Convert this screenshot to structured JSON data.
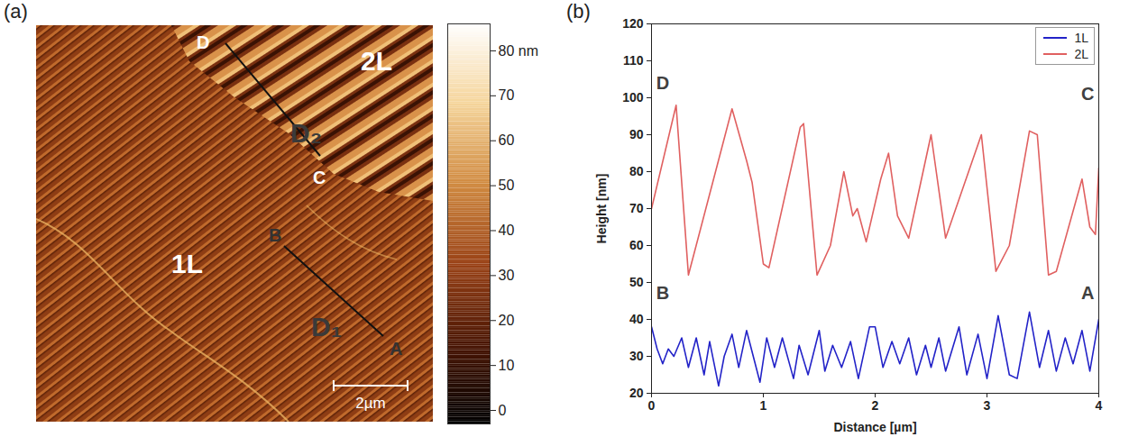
{
  "image_panel": {
    "panel_label": "(a)",
    "region_labels": [
      "1L",
      "2L"
    ],
    "profiles": [
      {
        "name": "D₁",
        "start": "B",
        "end": "A"
      },
      {
        "name": "D₂",
        "start": "D",
        "end": "C"
      }
    ],
    "scale_bar": "2µm",
    "colorbar": {
      "lim": [
        -3,
        86
      ],
      "ticks": [
        {
          "value": 80,
          "label": "80 nm"
        },
        70,
        60,
        50,
        40,
        30,
        20,
        10,
        0
      ]
    }
  },
  "chart_data": {
    "type": "line",
    "panel_label": "(b)",
    "x_label": "Distance [µm]",
    "y_label": "Height [nm]",
    "xlim": [
      0,
      4
    ],
    "xticks": [
      0,
      1,
      2,
      3,
      4
    ],
    "ylim": [
      20,
      120
    ],
    "yticks": [
      20,
      30,
      40,
      50,
      60,
      70,
      80,
      90,
      100,
      110,
      120
    ],
    "legend": "top-right",
    "series": [
      {
        "name": "1L",
        "color": "#2323c8",
        "x": [
          0,
          0.05,
          0.1,
          0.15,
          0.2,
          0.27,
          0.33,
          0.4,
          0.47,
          0.52,
          0.6,
          0.65,
          0.72,
          0.78,
          0.85,
          0.97,
          1.03,
          1.1,
          1.17,
          1.27,
          1.32,
          1.4,
          1.5,
          1.55,
          1.62,
          1.7,
          1.78,
          1.85,
          1.95,
          2.0,
          2.07,
          2.15,
          2.22,
          2.3,
          2.37,
          2.45,
          2.5,
          2.57,
          2.63,
          2.75,
          2.82,
          2.92,
          3.0,
          3.1,
          3.2,
          3.27,
          3.38,
          3.47,
          3.55,
          3.62,
          3.7,
          3.77,
          3.85,
          3.92,
          4.0
        ],
        "values": [
          38,
          32,
          28,
          32,
          30,
          35,
          27,
          35,
          25,
          34,
          22,
          30,
          36,
          27,
          37,
          23,
          35,
          27,
          35,
          24,
          33,
          25,
          37,
          26,
          33,
          27,
          34,
          24,
          38,
          38,
          27,
          34,
          28,
          35,
          25,
          33,
          27,
          35,
          26,
          38,
          25,
          36,
          24,
          41,
          25,
          24,
          42,
          27,
          37,
          26,
          35,
          28,
          37,
          26,
          40
        ]
      },
      {
        "name": "2L",
        "color": "#e06060",
        "x": [
          0,
          0.22,
          0.33,
          0.72,
          0.85,
          0.9,
          1.0,
          1.05,
          1.33,
          1.36,
          1.48,
          1.6,
          1.72,
          1.8,
          1.84,
          1.92,
          2.05,
          2.12,
          2.2,
          2.3,
          2.5,
          2.63,
          2.95,
          3.08,
          3.2,
          3.38,
          3.45,
          3.55,
          3.62,
          3.85,
          3.92,
          3.97,
          4.0
        ],
        "values": [
          70,
          98,
          52,
          97,
          83,
          77,
          55,
          54,
          92,
          93,
          52,
          60,
          80,
          68,
          70,
          61,
          78,
          85,
          68,
          62,
          90,
          62,
          90,
          53,
          60,
          91,
          90,
          52,
          53,
          78,
          65,
          63,
          81
        ]
      }
    ],
    "annotations": [
      {
        "text": "D",
        "x": 0.1,
        "y": 104
      },
      {
        "text": "C",
        "x": 3.9,
        "y": 101
      },
      {
        "text": "B",
        "x": 0.1,
        "y": 47
      },
      {
        "text": "A",
        "x": 3.9,
        "y": 47
      }
    ]
  }
}
